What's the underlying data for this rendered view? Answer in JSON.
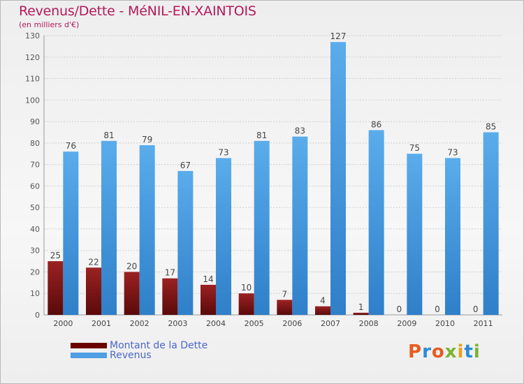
{
  "title": "Revenus/Dette - MéNIL-EN-XAINTOIS",
  "subtitle": "(en milliers d'€)",
  "colors": {
    "dette": "#8b1a1a",
    "revenus": "#4d9ee3",
    "title": "#b3195b",
    "legend_text": "#4a66c9"
  },
  "legend": [
    {
      "label": "Montant de la Dette",
      "color": "#6b0000"
    },
    {
      "label": "Revenus",
      "color": "#4d9ee3"
    }
  ],
  "logo": "Proxiti",
  "chart_data": {
    "type": "bar",
    "categories": [
      "2000",
      "2001",
      "2002",
      "2003",
      "2004",
      "2005",
      "2006",
      "2007",
      "2008",
      "2009",
      "2010",
      "2011"
    ],
    "series": [
      {
        "name": "Montant de la Dette",
        "values": [
          25,
          22,
          20,
          17,
          14,
          10,
          7,
          4,
          1,
          0,
          0,
          0
        ]
      },
      {
        "name": "Revenus",
        "values": [
          76,
          81,
          79,
          67,
          73,
          81,
          83,
          127,
          86,
          75,
          73,
          85
        ]
      }
    ],
    "ylim": [
      0,
      130
    ],
    "yticks": [
      0,
      10,
      20,
      30,
      40,
      50,
      60,
      70,
      80,
      90,
      100,
      110,
      120,
      130
    ],
    "grid": true
  }
}
